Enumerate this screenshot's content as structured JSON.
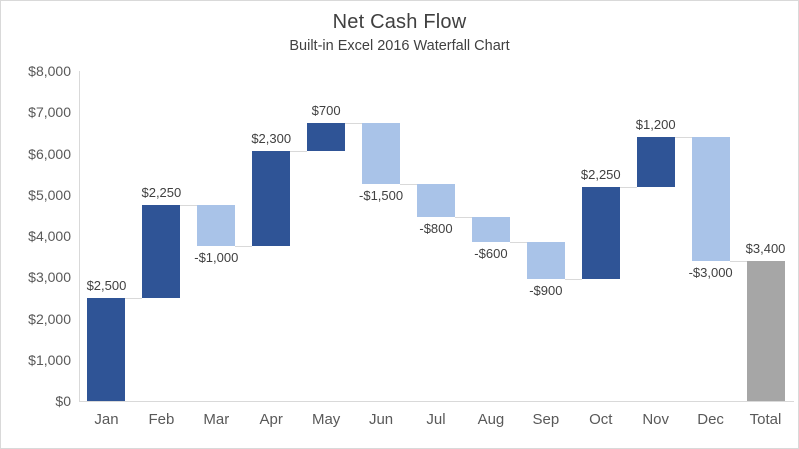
{
  "title": "Net Cash Flow",
  "subtitle": "Built-in Excel 2016 Waterfall Chart",
  "chart_data": {
    "type": "bar",
    "subtype": "waterfall",
    "title": "Net Cash Flow",
    "subtitle": "Built-in Excel 2016 Waterfall Chart",
    "xlabel": "",
    "ylabel": "",
    "legend": "none",
    "gridlines": "none",
    "categories": [
      "Jan",
      "Feb",
      "Mar",
      "Apr",
      "May",
      "Jun",
      "Jul",
      "Aug",
      "Sep",
      "Oct",
      "Nov",
      "Dec",
      "Total"
    ],
    "values": [
      2500,
      2250,
      -1000,
      2300,
      700,
      -1500,
      -800,
      -600,
      -900,
      2250,
      1200,
      -3000,
      3400
    ],
    "bar_roles": [
      "increase",
      "increase",
      "decrease",
      "increase",
      "increase",
      "decrease",
      "decrease",
      "decrease",
      "decrease",
      "increase",
      "increase",
      "decrease",
      "total"
    ],
    "data_labels": [
      "$2,500",
      "$2,250",
      "-$1,000",
      "$2,300",
      "$700",
      "-$1,500",
      "-$800",
      "-$600",
      "-$900",
      "$2,250",
      "$1,200",
      "-$3,000",
      "$3,400"
    ],
    "cumulative": [
      2500,
      4750,
      3750,
      6050,
      6750,
      5250,
      4450,
      3850,
      2950,
      5200,
      6400,
      3400,
      3400
    ],
    "y_ticks": [
      "$0",
      "$1,000",
      "$2,000",
      "$3,000",
      "$4,000",
      "$5,000",
      "$6,000",
      "$7,000",
      "$8,000"
    ],
    "y_tick_values": [
      0,
      1000,
      2000,
      3000,
      4000,
      5000,
      6000,
      7000,
      8000
    ],
    "ylim": [
      0,
      8000
    ],
    "colors": {
      "increase": "#2F5496",
      "decrease": "#A9C3E8",
      "total": "#A6A6A6",
      "connector": "#D9D9D9",
      "axis_line": "#D9D9D9",
      "label_text": "#404040",
      "axis_text": "#595959",
      "title_text": "#404040"
    }
  }
}
